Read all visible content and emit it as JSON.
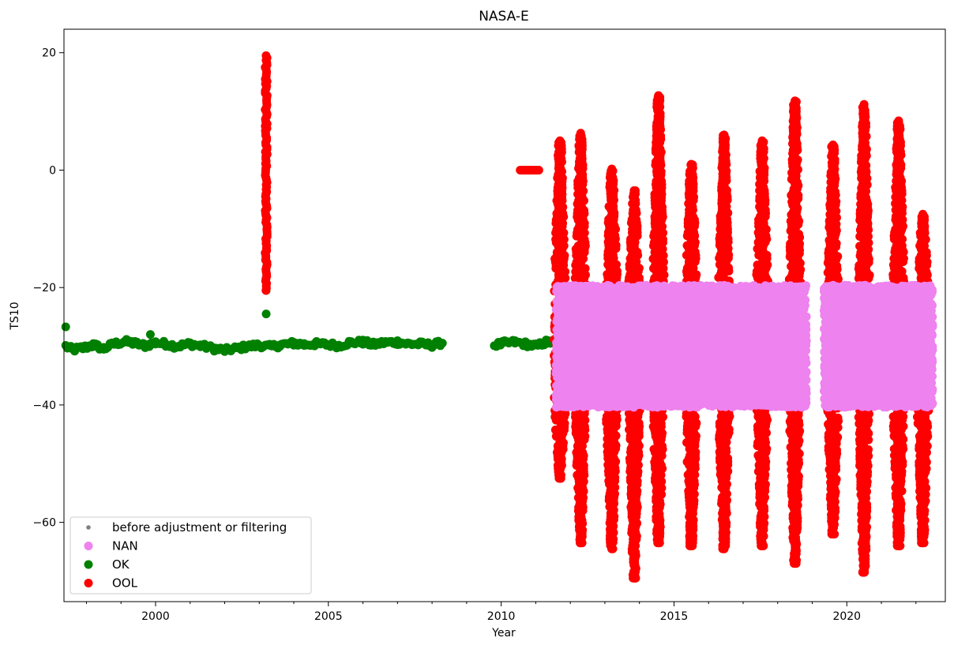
{
  "chart_data": {
    "type": "scatter",
    "title": "NASA-E",
    "xlabel": "Year",
    "ylabel": "TS10",
    "xlim": [
      1997.35,
      2022.85
    ],
    "ylim": [
      -73.5,
      24
    ],
    "x_ticks": [
      2000,
      2005,
      2010,
      2015,
      2020
    ],
    "y_ticks": [
      20,
      0,
      -20,
      -40,
      -60
    ],
    "grid": false,
    "legend": {
      "placement": "lower-left",
      "entries": [
        {
          "label": "before adjustment or filtering",
          "color": "#808080",
          "marker": "small-dot"
        },
        {
          "label": "NAN",
          "color": "#ee82ee",
          "marker": "dot"
        },
        {
          "label": "OK",
          "color": "#008000",
          "marker": "dot"
        },
        {
          "label": "OOL",
          "color": "#ff0000",
          "marker": "dot"
        }
      ]
    },
    "series": [
      {
        "name": "OK",
        "color": "#008000",
        "baseline": [
          [
            1997.4,
            -30.0
          ],
          [
            1997.6,
            -30.6
          ],
          [
            1997.9,
            -30.3
          ],
          [
            1998.2,
            -29.8
          ],
          [
            1998.5,
            -30.4
          ],
          [
            1998.8,
            -29.6
          ],
          [
            1999.1,
            -29.2
          ],
          [
            1999.4,
            -29.5
          ],
          [
            1999.7,
            -29.9
          ],
          [
            2000.0,
            -29.4
          ],
          [
            2000.3,
            -29.6
          ],
          [
            2000.6,
            -30.0
          ],
          [
            2001.0,
            -29.6
          ],
          [
            2001.3,
            -29.9
          ],
          [
            2001.7,
            -30.4
          ],
          [
            2002.0,
            -30.7
          ],
          [
            2002.3,
            -30.4
          ],
          [
            2002.6,
            -30.1
          ],
          [
            2003.0,
            -29.8
          ],
          [
            2003.3,
            -30.1
          ],
          [
            2003.6,
            -29.8
          ],
          [
            2004.0,
            -29.5
          ],
          [
            2004.3,
            -29.7
          ],
          [
            2004.6,
            -29.6
          ],
          [
            2005.0,
            -29.7
          ],
          [
            2005.3,
            -29.9
          ],
          [
            2005.6,
            -29.4
          ],
          [
            2006.0,
            -29.3
          ],
          [
            2006.3,
            -29.7
          ],
          [
            2006.6,
            -29.4
          ],
          [
            2007.0,
            -29.3
          ],
          [
            2007.3,
            -29.6
          ],
          [
            2007.6,
            -29.6
          ],
          [
            2008.0,
            -29.8
          ],
          [
            2008.3,
            -29.4
          ],
          [
            2009.8,
            -29.8
          ],
          [
            2010.1,
            -29.5
          ],
          [
            2010.4,
            -29.3
          ],
          [
            2010.7,
            -29.6
          ],
          [
            2011.0,
            -30.0
          ],
          [
            2011.3,
            -29.3
          ],
          [
            2011.6,
            -29.3
          ]
        ],
        "extra_points": [
          [
            1997.4,
            -26.7
          ],
          [
            1999.85,
            -28.0
          ],
          [
            2003.2,
            -20.5
          ],
          [
            2003.2,
            -24.5
          ]
        ]
      },
      {
        "name": "OOL",
        "color": "#ff0000",
        "spike": {
          "x": 2003.2,
          "y_min": -20.5,
          "y_max": 19.8
        },
        "flat": {
          "x_start": 2010.55,
          "x_end": 2011.1,
          "y": 0
        },
        "seasons": [
          {
            "x": 2011.7,
            "width": 0.35,
            "top": 5.0,
            "bottom": -52.5
          },
          {
            "x": 2012.3,
            "width": 0.35,
            "top": 6.3,
            "bottom": -63.5
          },
          {
            "x": 2013.2,
            "width": 0.35,
            "top": 0.2,
            "bottom": -64.5
          },
          {
            "x": 2013.85,
            "width": 0.35,
            "top": -3.5,
            "bottom": -69.5
          },
          {
            "x": 2014.55,
            "width": 0.35,
            "top": 12.7,
            "bottom": -63.5
          },
          {
            "x": 2015.5,
            "width": 0.35,
            "top": 1.0,
            "bottom": -64.0
          },
          {
            "x": 2016.45,
            "width": 0.35,
            "top": 6.0,
            "bottom": -64.5
          },
          {
            "x": 2017.55,
            "width": 0.35,
            "top": 5.0,
            "bottom": -64.0
          },
          {
            "x": 2018.5,
            "width": 0.35,
            "top": 11.8,
            "bottom": -67.0
          },
          {
            "x": 2019.6,
            "width": 0.35,
            "top": 4.3,
            "bottom": -62.0
          },
          {
            "x": 2020.5,
            "width": 0.35,
            "top": 11.2,
            "bottom": -68.5
          },
          {
            "x": 2021.5,
            "width": 0.35,
            "top": 8.4,
            "bottom": -64.0
          },
          {
            "x": 2022.2,
            "width": 0.35,
            "top": -7.5,
            "bottom": -63.5
          }
        ]
      },
      {
        "name": "NAN",
        "color": "#ee82ee",
        "range": [
          -40,
          -20
        ],
        "x_start": 2011.6,
        "x_end": 2022.5,
        "gaps": [
          [
            2018.85,
            2019.35
          ]
        ]
      }
    ]
  }
}
